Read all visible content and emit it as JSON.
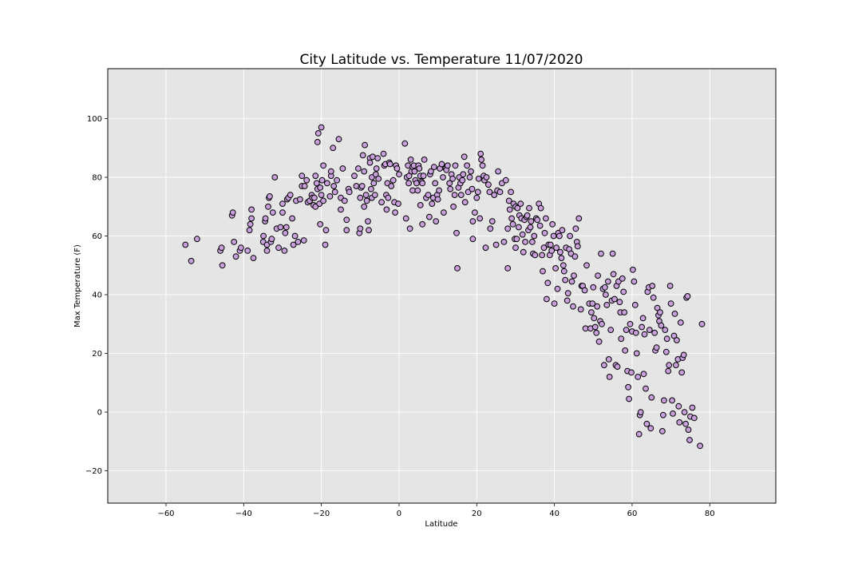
{
  "chart_data": {
    "type": "scatter",
    "title": "City Latitude vs. Temperature 11/07/2020",
    "xlabel": "Latitude",
    "ylabel": "Max Temperature (F)",
    "xlim": [
      -75,
      97
    ],
    "ylim": [
      -31,
      117
    ],
    "xticks": [
      -60,
      -40,
      -20,
      0,
      20,
      40,
      60,
      80
    ],
    "yticks": [
      -20,
      0,
      20,
      40,
      60,
      80,
      100
    ],
    "grid": true,
    "background": "#e5e5e5",
    "marker_color": "#c9a0dc",
    "marker_edge": "#000000",
    "points": [
      [
        -55,
        57
      ],
      [
        -53.5,
        51.5
      ],
      [
        -52,
        59
      ],
      [
        -46,
        55
      ],
      [
        -45.5,
        50
      ],
      [
        -45.7,
        56
      ],
      [
        -43,
        67
      ],
      [
        -42.8,
        68
      ],
      [
        -42.5,
        58
      ],
      [
        -42,
        53
      ],
      [
        -41,
        55
      ],
      [
        -40.7,
        56
      ],
      [
        -39,
        55
      ],
      [
        -38.5,
        62
      ],
      [
        -38.3,
        64
      ],
      [
        -38,
        66
      ],
      [
        -38,
        69
      ],
      [
        -37.5,
        52.5
      ],
      [
        -35,
        58
      ],
      [
        -34.9,
        60
      ],
      [
        -34.5,
        65
      ],
      [
        -34.4,
        66
      ],
      [
        -34,
        57
      ],
      [
        -34,
        55
      ],
      [
        -33.7,
        70
      ],
      [
        -33.5,
        73
      ],
      [
        -33.3,
        73.5
      ],
      [
        -33,
        58
      ],
      [
        -32.8,
        59
      ],
      [
        -32.5,
        68
      ],
      [
        -32,
        80
      ],
      [
        -31.5,
        62.5
      ],
      [
        -31,
        56
      ],
      [
        -30.5,
        63
      ],
      [
        -30,
        71
      ],
      [
        -30,
        68
      ],
      [
        -29.5,
        55
      ],
      [
        -29.3,
        61
      ],
      [
        -29,
        63
      ],
      [
        -28.8,
        72.5
      ],
      [
        -28.5,
        73
      ],
      [
        -28,
        74
      ],
      [
        -27.5,
        66
      ],
      [
        -27.2,
        57
      ],
      [
        -26.8,
        60
      ],
      [
        -26.5,
        72
      ],
      [
        -26,
        58
      ],
      [
        -25.5,
        72.5
      ],
      [
        -25,
        80.5
      ],
      [
        -25,
        77
      ],
      [
        -24.5,
        58.5
      ],
      [
        -24.3,
        77
      ],
      [
        -23.8,
        79
      ],
      [
        -23.5,
        71.5
      ],
      [
        -23,
        72
      ],
      [
        -22.5,
        74
      ],
      [
        -22.3,
        73
      ],
      [
        -22,
        70.5
      ],
      [
        -21.8,
        73
      ],
      [
        -21.5,
        70
      ],
      [
        -21.5,
        80.5
      ],
      [
        -21.2,
        78
      ],
      [
        -21,
        76
      ],
      [
        -21,
        92
      ],
      [
        -20.8,
        95
      ],
      [
        -20.5,
        71
      ],
      [
        -20.3,
        76.5
      ],
      [
        -20.3,
        64
      ],
      [
        -20,
        74
      ],
      [
        -20,
        97
      ],
      [
        -19.8,
        79
      ],
      [
        -19.5,
        84
      ],
      [
        -19.5,
        72
      ],
      [
        -19,
        57
      ],
      [
        -18.8,
        62
      ],
      [
        -18.5,
        78
      ],
      [
        -17.8,
        73.5
      ],
      [
        -17.5,
        80.5
      ],
      [
        -17.5,
        82
      ],
      [
        -17,
        90
      ],
      [
        -16.8,
        77
      ],
      [
        -16.5,
        75
      ],
      [
        -16,
        79
      ],
      [
        -15.5,
        93
      ],
      [
        -15,
        69
      ],
      [
        -15,
        73
      ],
      [
        -14.5,
        83
      ],
      [
        -14,
        72
      ],
      [
        -13.5,
        62
      ],
      [
        -13.5,
        65.5
      ],
      [
        -13,
        76
      ],
      [
        -12.8,
        75
      ],
      [
        -11.5,
        80.5
      ],
      [
        -11,
        77
      ],
      [
        -10.5,
        83
      ],
      [
        -10.2,
        61
      ],
      [
        -10,
        62.5
      ],
      [
        -10,
        73
      ],
      [
        -9.8,
        76.5
      ],
      [
        -9.5,
        77
      ],
      [
        -9.3,
        87.5
      ],
      [
        -9,
        82
      ],
      [
        -9,
        70
      ],
      [
        -8.8,
        91
      ],
      [
        -8.5,
        74
      ],
      [
        -8.3,
        72
      ],
      [
        -8,
        65
      ],
      [
        -7.8,
        62
      ],
      [
        -7.5,
        86.5
      ],
      [
        -7.5,
        85
      ],
      [
        -7.2,
        76
      ],
      [
        -7,
        73
      ],
      [
        -7,
        80
      ],
      [
        -6.8,
        87
      ],
      [
        -6.5,
        78
      ],
      [
        -6.2,
        74
      ],
      [
        -6,
        81
      ],
      [
        -5.8,
        83
      ],
      [
        -5.5,
        86.5
      ],
      [
        -5.3,
        79.5
      ],
      [
        -4.5,
        71.5
      ],
      [
        -4,
        88
      ],
      [
        -3.8,
        84
      ],
      [
        -3.5,
        84.5
      ],
      [
        -3.3,
        74
      ],
      [
        -3.2,
        69
      ],
      [
        -3,
        78
      ],
      [
        -2.8,
        73
      ],
      [
        -2.5,
        85
      ],
      [
        -2.3,
        84.5
      ],
      [
        -2,
        77
      ],
      [
        -1.5,
        79
      ],
      [
        -1.2,
        71.5
      ],
      [
        -1,
        68
      ],
      [
        -0.8,
        84
      ],
      [
        -0.5,
        83
      ],
      [
        -0.2,
        71
      ],
      [
        0,
        81
      ],
      [
        1.5,
        91.5
      ],
      [
        1.8,
        66
      ],
      [
        2,
        80
      ],
      [
        2.3,
        84
      ],
      [
        2.5,
        78
      ],
      [
        2.6,
        80.5
      ],
      [
        2.8,
        62.5
      ],
      [
        3,
        86
      ],
      [
        3.2,
        82
      ],
      [
        3.5,
        83.5
      ],
      [
        3.5,
        75.5
      ],
      [
        3.8,
        84
      ],
      [
        4,
        82
      ],
      [
        4.2,
        79
      ],
      [
        4.5,
        78
      ],
      [
        4.8,
        75.5
      ],
      [
        5,
        84
      ],
      [
        5.2,
        83
      ],
      [
        5.5,
        80.5
      ],
      [
        5.5,
        70.5
      ],
      [
        5.8,
        78.5
      ],
      [
        6,
        78
      ],
      [
        6,
        64
      ],
      [
        6.3,
        80.5
      ],
      [
        6.5,
        86
      ],
      [
        7,
        73
      ],
      [
        7.5,
        74
      ],
      [
        7.8,
        66.5
      ],
      [
        8,
        81
      ],
      [
        8.2,
        82
      ],
      [
        8.5,
        71
      ],
      [
        8.8,
        73
      ],
      [
        9,
        83.5
      ],
      [
        9.3,
        78
      ],
      [
        9.5,
        65
      ],
      [
        9.8,
        74
      ],
      [
        10,
        72.5
      ],
      [
        10.3,
        75.5
      ],
      [
        10.5,
        83
      ],
      [
        11,
        84.5
      ],
      [
        11.3,
        80
      ],
      [
        11.5,
        68
      ],
      [
        12,
        83
      ],
      [
        12.2,
        82.5
      ],
      [
        12.5,
        84
      ],
      [
        13,
        78
      ],
      [
        13.2,
        76
      ],
      [
        13.5,
        81
      ],
      [
        13.8,
        79.5
      ],
      [
        14,
        70
      ],
      [
        14.3,
        74
      ],
      [
        14.5,
        84
      ],
      [
        14.8,
        61
      ],
      [
        15,
        49
      ],
      [
        15.3,
        76.5
      ],
      [
        15.5,
        80
      ],
      [
        15.8,
        78
      ],
      [
        16,
        74
      ],
      [
        16.3,
        79
      ],
      [
        16.5,
        81
      ],
      [
        16.8,
        87
      ],
      [
        17,
        71.5
      ],
      [
        17.5,
        84
      ],
      [
        17.8,
        75
      ],
      [
        18.2,
        80
      ],
      [
        18.5,
        82
      ],
      [
        18.8,
        76
      ],
      [
        19,
        65
      ],
      [
        19,
        59
      ],
      [
        19.5,
        68
      ],
      [
        20,
        73
      ],
      [
        20.3,
        75
      ],
      [
        20.5,
        79.5
      ],
      [
        20.8,
        66
      ],
      [
        21,
        88
      ],
      [
        21.2,
        86
      ],
      [
        21.5,
        84
      ],
      [
        21.8,
        80.5
      ],
      [
        22,
        79
      ],
      [
        22.3,
        56
      ],
      [
        22.5,
        80
      ],
      [
        23,
        77.5
      ],
      [
        23.3,
        75
      ],
      [
        23.5,
        62.5
      ],
      [
        24,
        65
      ],
      [
        24.5,
        74
      ],
      [
        25,
        57
      ],
      [
        25.3,
        75.5
      ],
      [
        25.5,
        82
      ],
      [
        26,
        75
      ],
      [
        26.5,
        78
      ],
      [
        27,
        58
      ],
      [
        27.5,
        79
      ],
      [
        28,
        49
      ],
      [
        28,
        62.5
      ],
      [
        28.3,
        72
      ],
      [
        28.5,
        69
      ],
      [
        28.8,
        75
      ],
      [
        29,
        66
      ],
      [
        29.3,
        64
      ],
      [
        29.5,
        71
      ],
      [
        29.8,
        59
      ],
      [
        30,
        56
      ],
      [
        30,
        70
      ],
      [
        30.3,
        59
      ],
      [
        30.5,
        69.5
      ],
      [
        30.8,
        63
      ],
      [
        31,
        67
      ],
      [
        31.3,
        71
      ],
      [
        31.5,
        66
      ],
      [
        31.8,
        60.5
      ],
      [
        32,
        54.5
      ],
      [
        32.3,
        65.5
      ],
      [
        32.5,
        58
      ],
      [
        32.8,
        66.5
      ],
      [
        33,
        67
      ],
      [
        33.3,
        62
      ],
      [
        33.5,
        69.5
      ],
      [
        33.8,
        63
      ],
      [
        34,
        65
      ],
      [
        34.3,
        58
      ],
      [
        34.5,
        54
      ],
      [
        34.8,
        60
      ],
      [
        35,
        53.5
      ],
      [
        35.3,
        66
      ],
      [
        35.6,
        65.5
      ],
      [
        36,
        71
      ],
      [
        36.3,
        63.5
      ],
      [
        36.5,
        69.5
      ],
      [
        36.8,
        53.5
      ],
      [
        37,
        48
      ],
      [
        37.3,
        56
      ],
      [
        37.5,
        61
      ],
      [
        37.8,
        66
      ],
      [
        38,
        38.5
      ],
      [
        38.3,
        44
      ],
      [
        38.5,
        57
      ],
      [
        38.8,
        53.5
      ],
      [
        39,
        57
      ],
      [
        39.3,
        55
      ],
      [
        39.5,
        64
      ],
      [
        39.8,
        60
      ],
      [
        40,
        37
      ],
      [
        40.3,
        49
      ],
      [
        40.5,
        56
      ],
      [
        40.8,
        42
      ],
      [
        41,
        61
      ],
      [
        41.3,
        60
      ],
      [
        41.5,
        54.5
      ],
      [
        41.8,
        52.5
      ],
      [
        42,
        62
      ],
      [
        42.3,
        50
      ],
      [
        42.5,
        48
      ],
      [
        42.8,
        45
      ],
      [
        43,
        56
      ],
      [
        43.3,
        38
      ],
      [
        43.5,
        40.5
      ],
      [
        43.8,
        55.5
      ],
      [
        44,
        60
      ],
      [
        44.3,
        54
      ],
      [
        44.5,
        44.5
      ],
      [
        44.8,
        36
      ],
      [
        45,
        46.5
      ],
      [
        45.3,
        53
      ],
      [
        45.5,
        62.5
      ],
      [
        45.8,
        58
      ],
      [
        46,
        56.5
      ],
      [
        46.3,
        66
      ],
      [
        46.8,
        35
      ],
      [
        47,
        43
      ],
      [
        47.3,
        43
      ],
      [
        47.8,
        41.5
      ],
      [
        48,
        28.5
      ],
      [
        48.3,
        50
      ],
      [
        49,
        37
      ],
      [
        49.3,
        28.5
      ],
      [
        49.5,
        34
      ],
      [
        49.8,
        37
      ],
      [
        50,
        42.5
      ],
      [
        50.2,
        32
      ],
      [
        50.5,
        29
      ],
      [
        50.8,
        27
      ],
      [
        51,
        36
      ],
      [
        51.2,
        46.5
      ],
      [
        51.5,
        24
      ],
      [
        51.8,
        31
      ],
      [
        52,
        54
      ],
      [
        52.2,
        30
      ],
      [
        52.5,
        42
      ],
      [
        52.8,
        16
      ],
      [
        53,
        42.5
      ],
      [
        53.2,
        40
      ],
      [
        53.5,
        36.5
      ],
      [
        53.8,
        44.5
      ],
      [
        54,
        18
      ],
      [
        54.2,
        12
      ],
      [
        54.5,
        28
      ],
      [
        54.8,
        38
      ],
      [
        55,
        54
      ],
      [
        55.2,
        47
      ],
      [
        55.5,
        38.5
      ],
      [
        55.8,
        16
      ],
      [
        56,
        43
      ],
      [
        56.2,
        15.5
      ],
      [
        56.5,
        44.5
      ],
      [
        56.8,
        37.5
      ],
      [
        57,
        34
      ],
      [
        57.2,
        25
      ],
      [
        57.5,
        45.5
      ],
      [
        57.8,
        41
      ],
      [
        58,
        34
      ],
      [
        58.2,
        21
      ],
      [
        58.5,
        28
      ],
      [
        58.8,
        14
      ],
      [
        59,
        8.5
      ],
      [
        59.2,
        4.5
      ],
      [
        59.5,
        30
      ],
      [
        59.8,
        13.5
      ],
      [
        60,
        27.5
      ],
      [
        60.2,
        48.5
      ],
      [
        60.5,
        44.5
      ],
      [
        60.8,
        36.5
      ],
      [
        61,
        27
      ],
      [
        61.2,
        20
      ],
      [
        61.5,
        12
      ],
      [
        61.8,
        -7.5
      ],
      [
        62,
        -1
      ],
      [
        62.2,
        0
      ],
      [
        62.5,
        29
      ],
      [
        62.8,
        32
      ],
      [
        63,
        13
      ],
      [
        63.2,
        26.5
      ],
      [
        63.5,
        8
      ],
      [
        63.8,
        -4
      ],
      [
        64,
        41
      ],
      [
        64.3,
        42.5
      ],
      [
        64.5,
        28
      ],
      [
        64.8,
        -5.5
      ],
      [
        65,
        5
      ],
      [
        65.2,
        43
      ],
      [
        65.5,
        39
      ],
      [
        65.8,
        27
      ],
      [
        66,
        21
      ],
      [
        66.3,
        22
      ],
      [
        66.5,
        35.5
      ],
      [
        66.8,
        33
      ],
      [
        67,
        31
      ],
      [
        67.2,
        34
      ],
      [
        67.5,
        29.5
      ],
      [
        67.8,
        -6.5
      ],
      [
        68,
        -1
      ],
      [
        68.2,
        4
      ],
      [
        68.5,
        28
      ],
      [
        68.8,
        20.5
      ],
      [
        69,
        25
      ],
      [
        69.3,
        14
      ],
      [
        69.5,
        16
      ],
      [
        69.8,
        43
      ],
      [
        70,
        37
      ],
      [
        70.3,
        4
      ],
      [
        70.5,
        -0.5
      ],
      [
        70.8,
        26
      ],
      [
        71,
        33.5
      ],
      [
        71.3,
        16
      ],
      [
        71.5,
        24.5
      ],
      [
        71.8,
        18
      ],
      [
        72,
        2
      ],
      [
        72.2,
        -3.5
      ],
      [
        72.5,
        30.5
      ],
      [
        72.8,
        13.5
      ],
      [
        73,
        18.5
      ],
      [
        73.3,
        19.5
      ],
      [
        73.5,
        0
      ],
      [
        73.8,
        -4
      ],
      [
        74,
        39
      ],
      [
        74.3,
        39.5
      ],
      [
        74.5,
        -6
      ],
      [
        74.8,
        -9.5
      ],
      [
        75,
        -1.5
      ],
      [
        75.5,
        1.5
      ],
      [
        76,
        -2
      ],
      [
        77.5,
        -11.5
      ],
      [
        78,
        30
      ]
    ]
  }
}
